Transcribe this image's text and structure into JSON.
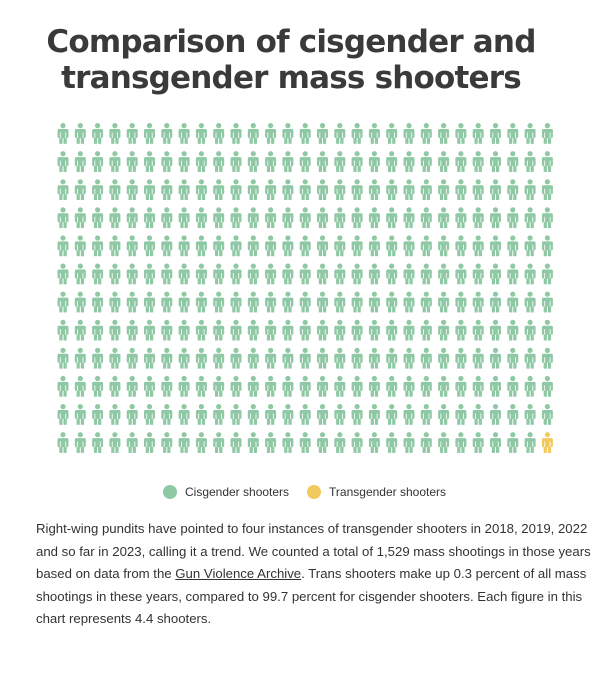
{
  "title": {
    "line1": "Comparison of cisgender and",
    "line2": "transgender mass shooters"
  },
  "colors": {
    "cisgender": "#8fc8a4",
    "transgender": "#f2c95c"
  },
  "chart_data": {
    "type": "pictograph",
    "title": "Comparison of cisgender and transgender mass shooters",
    "rows": 12,
    "columns": 29,
    "per_figure": 4.4,
    "series": [
      {
        "name": "Cisgender shooters",
        "figures": 347
      },
      {
        "name": "Transgender shooters",
        "figures": 1
      }
    ],
    "legend_position": "bottom"
  },
  "legend": {
    "items": [
      {
        "label": "Cisgender shooters"
      },
      {
        "label": "Transgender shooters"
      }
    ]
  },
  "description": {
    "part1": "Right-wing pundits have pointed to four instances of transgender shooters in 2018, 2019, 2022 and so far in 2023, calling it a trend. We counted a total of 1,529 mass shootings in those years based on data from the ",
    "link": "Gun Violence Archive",
    "part2": ". Trans shooters make up 0.3 percent of all mass shootings in these years, compared to 99.7 percent for cisgender shooters. Each figure in this chart represents 4.4 shooters."
  }
}
